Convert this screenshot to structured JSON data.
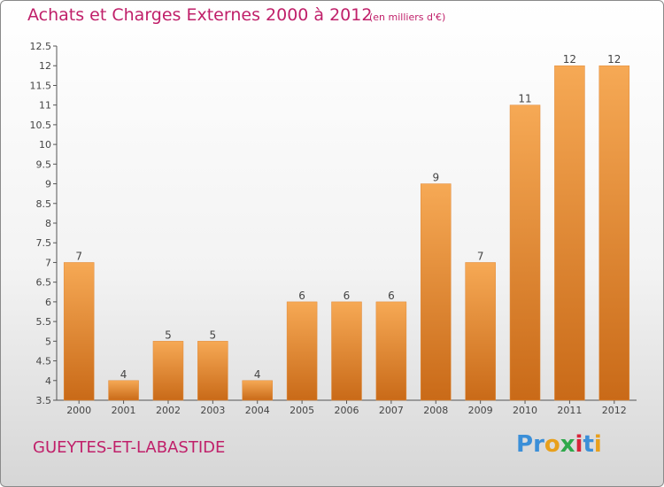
{
  "title": "Achats et Charges Externes 2000 à 2012",
  "subtitle": "(en milliers d'€)",
  "commune": "GUEYTES-ET-LABASTIDE",
  "logo": {
    "text": "Proxiti",
    "colors": [
      "#3b8fd8",
      "#3b8fd8",
      "#e8a01c",
      "#2ea84a",
      "#d8243a",
      "#3b8fd8",
      "#e8a01c"
    ]
  },
  "colors": {
    "title": "#c0206a",
    "bar_light": "#f6a955",
    "bar_dark": "#c96a18"
  },
  "chart_data": {
    "type": "bar",
    "title": "Achats et Charges Externes 2000 à 2012",
    "xlabel": "",
    "ylabel": "",
    "categories": [
      "2000",
      "2001",
      "2002",
      "2003",
      "2004",
      "2005",
      "2006",
      "2007",
      "2008",
      "2009",
      "2010",
      "2011",
      "2012"
    ],
    "values": [
      7,
      4,
      5,
      5,
      4,
      6,
      6,
      6,
      9,
      7,
      11,
      12,
      12
    ],
    "value_labels": [
      "7",
      "4",
      "5",
      "5",
      "4",
      "6",
      "6",
      "6",
      "9",
      "7",
      "11",
      "12",
      "12"
    ],
    "ylim": [
      3.5,
      12.5
    ],
    "yticks": [
      "3.5",
      "4",
      "4.5",
      "5",
      "5.5",
      "6",
      "6.5",
      "7",
      "7.5",
      "8",
      "8.5",
      "9",
      "9.5",
      "10",
      "10.5",
      "11",
      "11.5",
      "12",
      "12.5"
    ],
    "grid": false,
    "legend": "none"
  }
}
